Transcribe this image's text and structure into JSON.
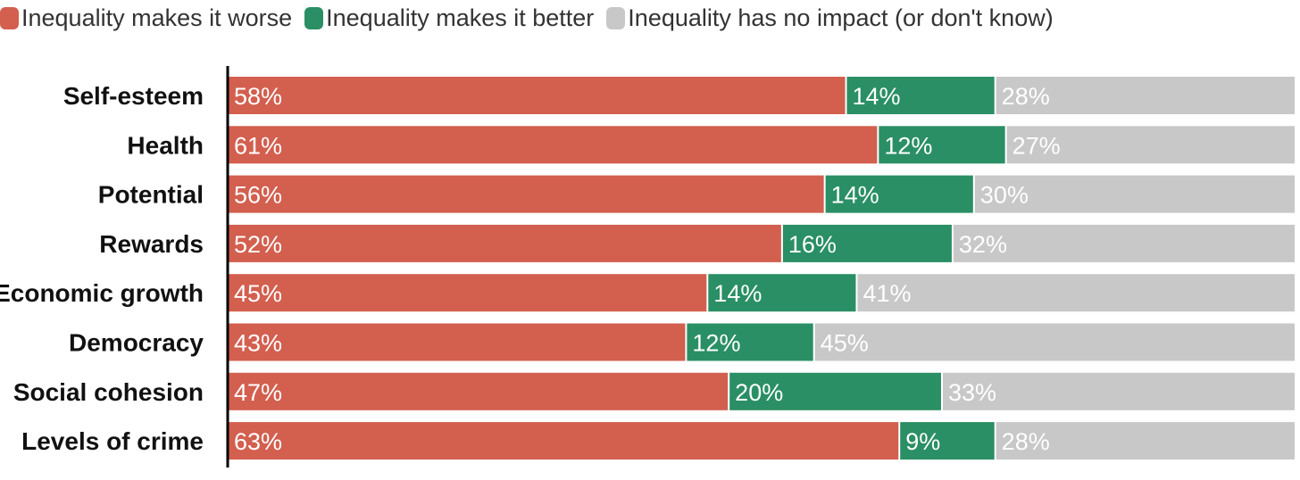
{
  "chart_data": {
    "type": "bar",
    "orientation": "horizontal",
    "stacked": true,
    "percent_stacked": true,
    "title": "",
    "xlabel": "",
    "ylabel": "",
    "xlim": [
      0,
      100
    ],
    "grid": false,
    "legend_position": "top-left",
    "categories": [
      "Self-esteem",
      "Health",
      "Potential",
      "Rewards",
      "Economic growth",
      "Democracy",
      "Social cohesion",
      "Levels of crime"
    ],
    "series": [
      {
        "name": "Inequality makes it worse",
        "color": "#d35f4f",
        "values": [
          58,
          61,
          56,
          52,
          45,
          43,
          47,
          63
        ],
        "labels": [
          "58%",
          "61%",
          "56%",
          "52%",
          "45%",
          "43%",
          "47%",
          "63%"
        ]
      },
      {
        "name": "Inequality makes it better",
        "color": "#2a8f64",
        "values": [
          14,
          12,
          14,
          16,
          14,
          12,
          20,
          9
        ],
        "labels": [
          "14%",
          "12%",
          "14%",
          "16%",
          "14%",
          "12%",
          "20%",
          "9%"
        ]
      },
      {
        "name": "Inequality has no impact (or don't know)",
        "color": "#c8c8c8",
        "values": [
          28,
          27,
          30,
          32,
          41,
          45,
          33,
          28
        ],
        "labels": [
          "28%",
          "27%",
          "30%",
          "32%",
          "41%",
          "45%",
          "33%",
          "28%"
        ]
      }
    ]
  }
}
